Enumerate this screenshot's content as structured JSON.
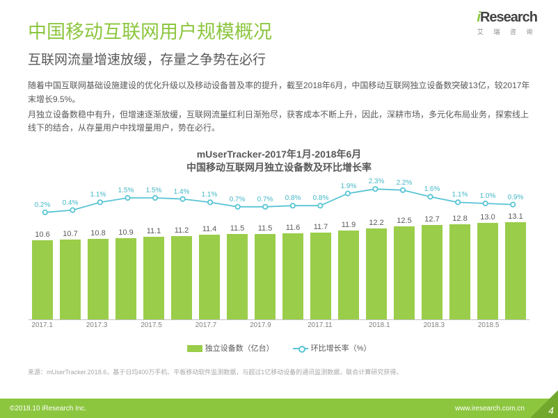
{
  "logo": {
    "brand_i": "i",
    "brand_rest": "Research",
    "sub": "艾 瑞 咨 询"
  },
  "title": "中国移动互联网用户规模概况",
  "subtitle": "互联网流量增速放缓，存量之争势在必行",
  "paragraphs": [
    "随着中国互联网基础设施建设的优化升级以及移动设备普及率的提升，截至2018年6月，中国移动互联网独立设备数突破13亿，较2017年末增长9.5%。",
    "月独立设备数稳中有升，但增速逐渐放缓，互联网流量红利日渐殆尽，获客成本不断上升，因此，深耕市场，多元化布局业务，探索线上线下的结合，从存量用户中找增量用户，势在必行。"
  ],
  "chart": {
    "type": "bar+line",
    "title_line1": "mUserTracker-2017年1月-2018年6月",
    "title_line2": "中国移动互联网月独立设备数及环比增长率",
    "bar_color": "#9acd4a",
    "line_color": "#58c4d4",
    "background_color": "#ffffff",
    "axis_color": "#bfbfbf",
    "bar_label_color": "#595959",
    "line_label_color": "#44b6c6",
    "xlabel_color": "#7f7f7f",
    "bar_value_fontsize": 11,
    "line_value_fontsize": 10,
    "bar_ymax": 14,
    "line_display_min_pct": 0.0,
    "line_display_max_pct": 2.5,
    "months": [
      {
        "x": "2017.1",
        "bar": 10.6,
        "line": 0.2,
        "show_x": true
      },
      {
        "x": "2017.2",
        "bar": 10.7,
        "line": 0.4,
        "show_x": false
      },
      {
        "x": "2017.3",
        "bar": 10.8,
        "line": 1.1,
        "show_x": true
      },
      {
        "x": "2017.4",
        "bar": 10.9,
        "line": 1.5,
        "show_x": false
      },
      {
        "x": "2017.5",
        "bar": 11.1,
        "line": 1.5,
        "show_x": true
      },
      {
        "x": "2017.6",
        "bar": 11.2,
        "line": 1.4,
        "show_x": false
      },
      {
        "x": "2017.7",
        "bar": 11.4,
        "line": 1.1,
        "show_x": true
      },
      {
        "x": "2017.8",
        "bar": 11.5,
        "line": 0.7,
        "show_x": false
      },
      {
        "x": "2017.9",
        "bar": 11.5,
        "line": 0.7,
        "show_x": true
      },
      {
        "x": "2017.10",
        "bar": 11.6,
        "line": 0.8,
        "show_x": false
      },
      {
        "x": "2017.11",
        "bar": 11.7,
        "line": 0.8,
        "show_x": true
      },
      {
        "x": "2017.12",
        "bar": 11.9,
        "line": 1.9,
        "show_x": false
      },
      {
        "x": "2018.1",
        "bar": 12.2,
        "line": 2.3,
        "show_x": true
      },
      {
        "x": "2018.2",
        "bar": 12.5,
        "line": 2.2,
        "show_x": false
      },
      {
        "x": "2018.3",
        "bar": 12.7,
        "line": 1.6,
        "show_x": true
      },
      {
        "x": "2018.4",
        "bar": 12.8,
        "line": 1.1,
        "show_x": false
      },
      {
        "x": "2018.5",
        "bar": 13.0,
        "line": 1.0,
        "show_x": true
      },
      {
        "x": "2018.6",
        "bar": 13.1,
        "line": 0.9,
        "show_x": false
      }
    ],
    "legend": {
      "bar": "独立设备数（亿台）",
      "line": "环比增长率（%）"
    }
  },
  "source": "来源：mUserTracker.2018.6，基于日均400万手机、平板移动软件监测数据，与超过1亿移动设备的通讯监测数据，联合计算研究获得。",
  "footer": {
    "copyright": "©2018.10 iResearch Inc.",
    "url": "www.iresearch.com.cn",
    "page": "4"
  }
}
